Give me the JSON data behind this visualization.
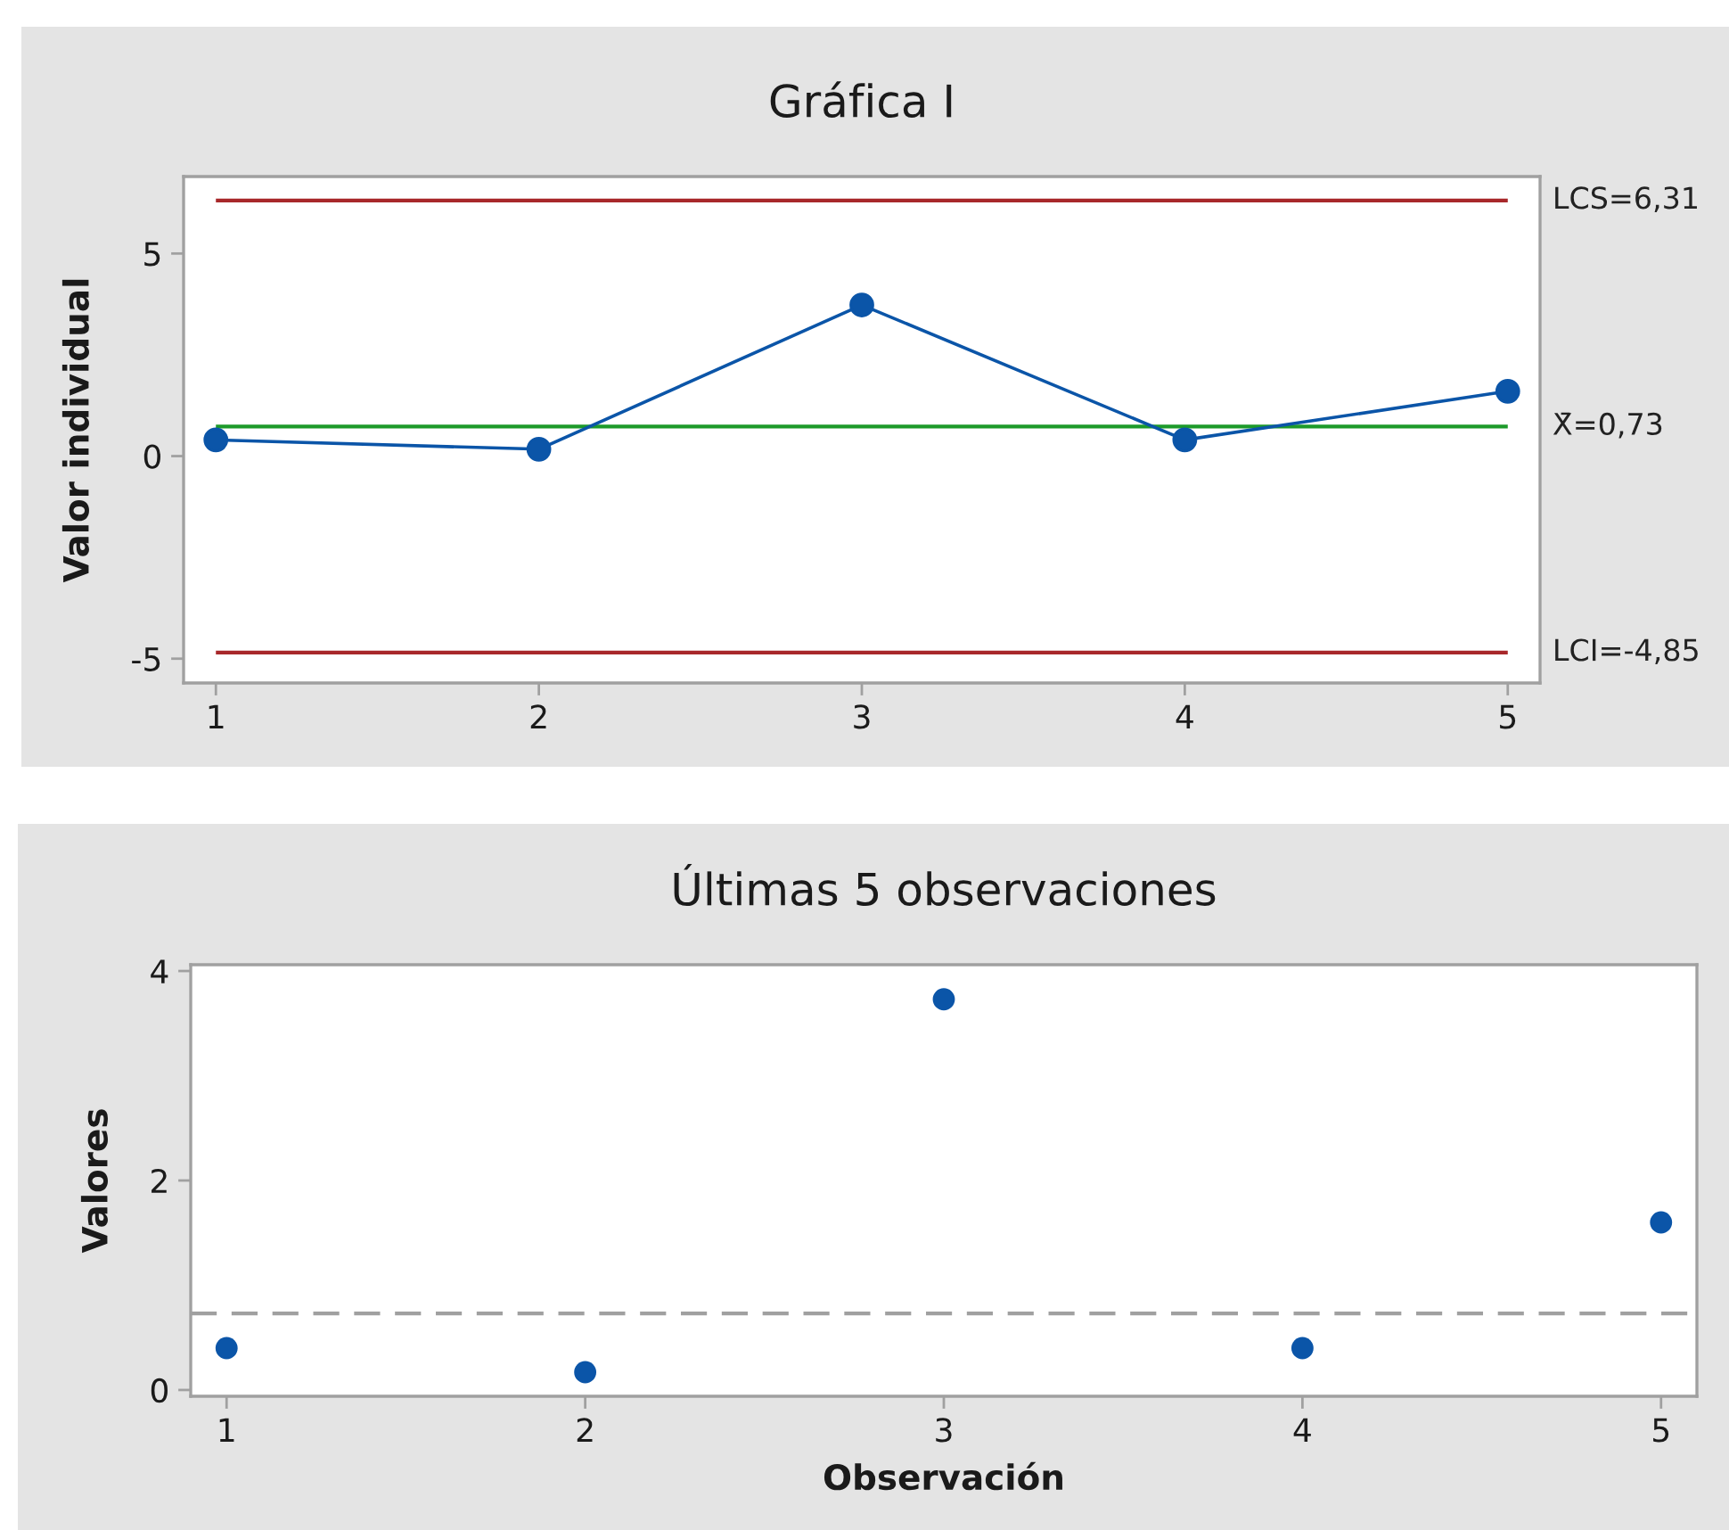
{
  "chart_data": [
    {
      "type": "line",
      "title": "Gráfica I",
      "ylabel": "Valor individual",
      "x": [
        1,
        2,
        3,
        4,
        5
      ],
      "xlim": [
        0.9,
        5.1
      ],
      "xticks": [
        1,
        2,
        3,
        4,
        5
      ],
      "ylim": [
        -5.6,
        6.9
      ],
      "yticks": [
        -5,
        0,
        5
      ],
      "marker": "circle",
      "line_style": "solid",
      "series": [
        {
          "color": "#0b55a8",
          "values": [
            0.4,
            0.17,
            3.73,
            0.4,
            1.6
          ]
        }
      ],
      "ref_lines": [
        {
          "axis": "y",
          "value": 6.31,
          "label": "LCS=6,31",
          "color": "#a8282a"
        },
        {
          "axis": "y",
          "value": 0.73,
          "label": "X̄=0,73",
          "color": "#1d9a2a"
        },
        {
          "axis": "y",
          "value": -4.85,
          "label": "LCI=-4,85",
          "color": "#a8282a"
        }
      ]
    },
    {
      "type": "scatter",
      "title": "Últimas 5 observaciones",
      "xlabel": "Observación",
      "ylabel": "Valores",
      "x": [
        1,
        2,
        3,
        4,
        5
      ],
      "xlim": [
        0.9,
        5.1
      ],
      "xticks": [
        1,
        2,
        3,
        4,
        5
      ],
      "ylim": [
        -0.06,
        4.06
      ],
      "yticks": [
        0,
        2,
        4
      ],
      "marker": "circle",
      "series": [
        {
          "color": "#0b55a8",
          "values": [
            0.4,
            0.17,
            3.73,
            0.4,
            1.6
          ]
        }
      ],
      "ref_lines": [
        {
          "axis": "y",
          "value": 0.73,
          "color": "#a0a0a0",
          "line_style": "dashed"
        }
      ]
    }
  ]
}
